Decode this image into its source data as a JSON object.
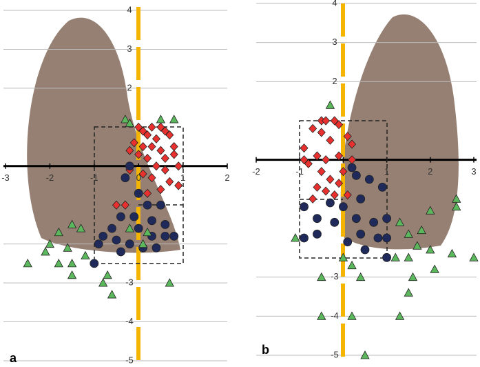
{
  "chart_data": [
    {
      "type": "scatter",
      "label": "a",
      "xlim": [
        -3,
        2
      ],
      "ylim": [
        -5,
        4
      ],
      "xticks": [
        -3,
        -2,
        -1,
        0,
        1,
        2
      ],
      "yticks": [
        -5,
        -4,
        -3,
        -2,
        2,
        3,
        4
      ],
      "grid": true,
      "series": [
        {
          "color": "#e8312f",
          "marker": "diamond",
          "x": [
            0,
            0.1,
            0.3,
            0.5,
            0.6,
            0.2,
            0.4,
            0.7,
            -0.1,
            0.1,
            0.3,
            0.5,
            0.8,
            0,
            0.2,
            0.6,
            0.9,
            -0.2,
            0.4,
            0.1,
            0.3,
            0.7,
            0.9,
            0.5,
            0.2,
            -0.3,
            -0.5,
            -0.2,
            0.6,
            0.8
          ],
          "values": [
            1,
            0.9,
            1,
            1,
            0.9,
            0.8,
            0.7,
            0.8,
            0.6,
            0.5,
            0.5,
            0.4,
            0.5,
            0.3,
            0.2,
            0.2,
            0,
            0.4,
            0,
            -0.2,
            -0.3,
            -0.4,
            -0.5,
            -0.6,
            -0.7,
            -1,
            -1,
            -0.1,
            -0.1,
            0.3
          ]
        },
        {
          "color": "#1f2a5a",
          "marker": "circle",
          "x": [
            -0.2,
            -0.3,
            0,
            0.2,
            0.5,
            -0.4,
            -0.1,
            0.3,
            0.6,
            -0.6,
            0,
            -0.8,
            -0.5,
            -0.2,
            0.3,
            0.6,
            -0.9,
            -0.4,
            0.1,
            -1,
            0.8,
            0.4
          ],
          "values": [
            0,
            -0.3,
            -0.7,
            -1,
            -1,
            -1.3,
            -1.3,
            -1.4,
            -1.5,
            -1.6,
            -1.6,
            -1.8,
            -1.9,
            -2,
            -1.8,
            -1.8,
            -2,
            -2.2,
            -2.1,
            -2.5,
            -1.8,
            -2.1
          ]
        },
        {
          "color": "#5cb85c",
          "marker": "triangle",
          "x": [
            -0.3,
            -0.2,
            0.5,
            0.8,
            -2.5,
            -1.5,
            -1.3,
            -1.8,
            -2,
            -1.6,
            -1.2,
            -2.1,
            -1.5,
            -1.5,
            -0.7,
            -0.8,
            -0.6,
            0.1,
            0.7,
            -0.2,
            0.2,
            -1.8
          ],
          "values": [
            1.2,
            1.1,
            1.2,
            1.2,
            -2.5,
            -1.5,
            -1.6,
            -1.7,
            -2,
            -2.1,
            -2.3,
            -2.2,
            -2.5,
            -2.8,
            -2.8,
            -3,
            -3.3,
            -2,
            -3,
            -1.6,
            -1.7,
            -2.5
          ]
        }
      ]
    },
    {
      "type": "scatter",
      "label": "b",
      "xlim": [
        -2,
        3
      ],
      "ylim": [
        -5,
        4
      ],
      "xticks": [
        -2,
        -1,
        0,
        1,
        2,
        3
      ],
      "yticks": [
        -5,
        -4,
        -3,
        2,
        3,
        4
      ],
      "grid": true,
      "series": [
        {
          "color": "#e8312f",
          "marker": "diamond",
          "x": [
            -0.5,
            -0.4,
            -0.2,
            -0.1,
            -0.7,
            -0.5,
            -0.3,
            0.1,
            0.2,
            -0.9,
            -0.6,
            -0.4,
            -0.1,
            -0.8,
            -0.5,
            -0.3,
            0,
            -0.6,
            -0.4,
            -0.1,
            0.1,
            -0.7,
            -0.9,
            0.2,
            -0.2
          ],
          "values": [
            1,
            1,
            1,
            0.9,
            0.8,
            0.7,
            0.5,
            0.6,
            0.4,
            0.3,
            0.1,
            0,
            0.1,
            -0.1,
            -0.3,
            -0.5,
            -0.3,
            -0.7,
            -0.8,
            -0.6,
            -0.9,
            -1,
            0,
            0,
            -0.9
          ]
        },
        {
          "color": "#1f2a5a",
          "marker": "circle",
          "x": [
            0.2,
            0.3,
            0.6,
            0.9,
            -0.3,
            0,
            0.4,
            -0.9,
            -0.6,
            -0.2,
            0.3,
            0.7,
            1,
            -0.9,
            -0.6,
            0.4,
            0.8,
            1,
            0.5,
            1,
            0.1
          ],
          "values": [
            -0.2,
            -0.4,
            -0.5,
            -0.7,
            -1.1,
            -1.2,
            -1,
            -1.2,
            -1.5,
            -1.6,
            -1.5,
            -1.6,
            -1.5,
            -2,
            -1.9,
            -1.9,
            -2,
            -2,
            -2.3,
            -2.5,
            -2.1
          ]
        },
        {
          "color": "#5cb85c",
          "marker": "triangle",
          "x": [
            -0.3,
            -1.1,
            -0.5,
            0,
            0.2,
            0.4,
            1.3,
            1.5,
            1.7,
            1.5,
            1.2,
            2,
            2.5,
            2.1,
            2.6,
            2.6,
            3,
            1.6,
            1.5,
            1.3,
            -0.5,
            0.2,
            0.5,
            2,
            1.8
          ],
          "values": [
            1.4,
            -2,
            -3,
            -2.5,
            -2.7,
            -3,
            -1.6,
            -1.9,
            -2.2,
            -2.5,
            -2.5,
            -2.3,
            -2.4,
            -2.8,
            -1,
            -1.2,
            -2.5,
            -3,
            -3.4,
            -4,
            -4,
            -4,
            -5,
            -1.3,
            -1.8
          ]
        }
      ]
    }
  ]
}
